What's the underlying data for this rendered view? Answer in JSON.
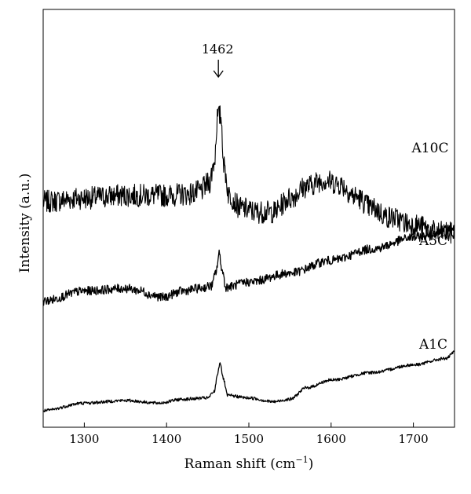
{
  "chart_data": {
    "type": "line",
    "xlabel": "Raman shift (cm",
    "xlabel_sup": "−1",
    "xlabel_close": ")",
    "ylabel": "Intensity (a.u.)",
    "xlim": [
      1250,
      1750
    ],
    "x_ticks": [
      1300,
      1400,
      1500,
      1600,
      1700
    ],
    "y_ticks_labeled": false,
    "grid": false,
    "annotation": {
      "text": "1462",
      "x": 1462,
      "marker": "arrow"
    },
    "series": [
      {
        "name": "A10C",
        "noise": 0.9,
        "points": [
          [
            1250,
            4.85
          ],
          [
            1300,
            5.0
          ],
          [
            1350,
            5.1
          ],
          [
            1400,
            5.1
          ],
          [
            1425,
            5.15
          ],
          [
            1440,
            5.25
          ],
          [
            1452,
            5.6
          ],
          [
            1458,
            6.4
          ],
          [
            1462,
            8.2
          ],
          [
            1466,
            8.2
          ],
          [
            1470,
            6.2
          ],
          [
            1476,
            5.1
          ],
          [
            1490,
            4.6
          ],
          [
            1510,
            4.45
          ],
          [
            1530,
            4.45
          ],
          [
            1550,
            5.0
          ],
          [
            1570,
            5.45
          ],
          [
            1590,
            5.7
          ],
          [
            1610,
            5.55
          ],
          [
            1630,
            5.05
          ],
          [
            1650,
            4.6
          ],
          [
            1670,
            4.25
          ],
          [
            1700,
            3.95
          ],
          [
            1730,
            3.65
          ],
          [
            1750,
            3.6
          ]
        ]
      },
      {
        "name": "A5C",
        "noise": 0.35,
        "points": [
          [
            1250,
            0.95
          ],
          [
            1300,
            1.35
          ],
          [
            1350,
            1.45
          ],
          [
            1370,
            1.35
          ],
          [
            1380,
            1.2
          ],
          [
            1395,
            1.1
          ],
          [
            1420,
            1.35
          ],
          [
            1440,
            1.45
          ],
          [
            1455,
            1.55
          ],
          [
            1460,
            2.1
          ],
          [
            1464,
            2.8
          ],
          [
            1468,
            2.1
          ],
          [
            1472,
            1.5
          ],
          [
            1500,
            1.7
          ],
          [
            1550,
            2.05
          ],
          [
            1600,
            2.55
          ],
          [
            1650,
            3.0
          ],
          [
            1700,
            3.45
          ],
          [
            1750,
            3.8
          ]
        ]
      },
      {
        "name": "A1C",
        "noise": 0.12,
        "points": [
          [
            1250,
            -3.35
          ],
          [
            1300,
            -3.05
          ],
          [
            1350,
            -2.95
          ],
          [
            1390,
            -3.05
          ],
          [
            1420,
            -2.9
          ],
          [
            1450,
            -2.85
          ],
          [
            1458,
            -2.6
          ],
          [
            1462,
            -1.9
          ],
          [
            1465,
            -1.45
          ],
          [
            1469,
            -2.1
          ],
          [
            1474,
            -2.75
          ],
          [
            1500,
            -2.85
          ],
          [
            1530,
            -3.0
          ],
          [
            1550,
            -2.9
          ],
          [
            1570,
            -2.45
          ],
          [
            1600,
            -2.15
          ],
          [
            1650,
            -1.85
          ],
          [
            1700,
            -1.55
          ],
          [
            1740,
            -1.3
          ],
          [
            1750,
            -1.05
          ]
        ]
      }
    ]
  }
}
